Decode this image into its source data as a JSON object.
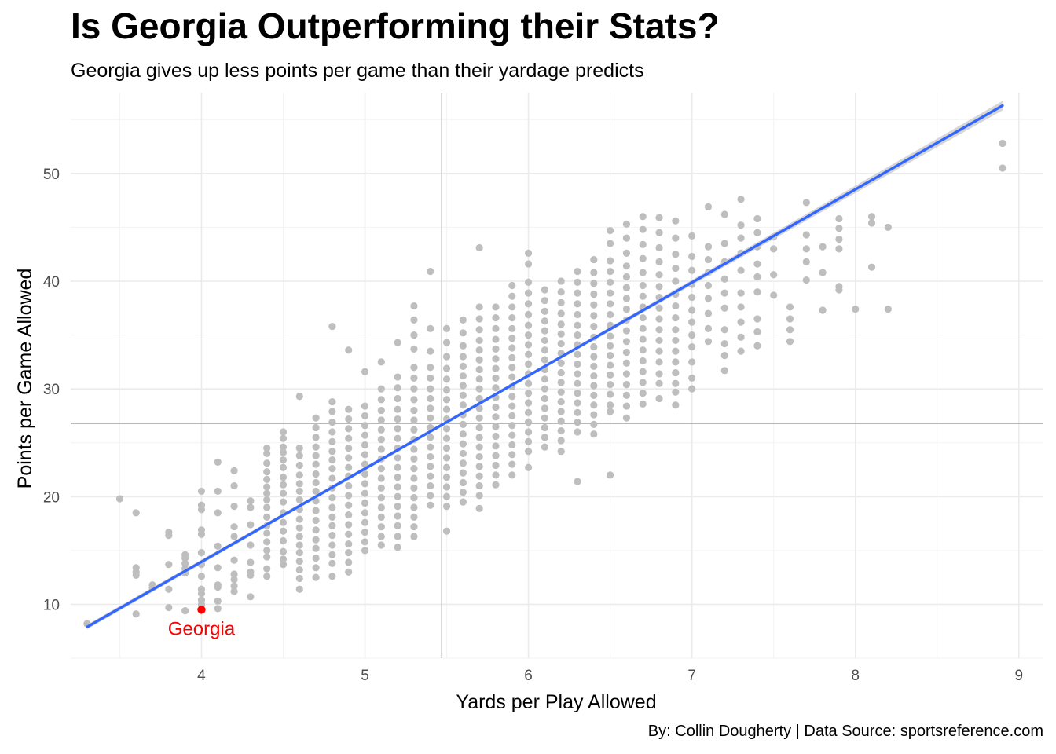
{
  "chart_data": {
    "type": "scatter",
    "title": "Is Georgia Outperforming their Stats?",
    "subtitle": "Georgia gives up less points per game than their yardage predicts",
    "caption": "By: Collin Dougherty | Data Source: sportsreference.com",
    "xlabel": "Yards per Play Allowed",
    "ylabel": "Points per Game Allowed",
    "xlim": [
      3.2,
      9.15
    ],
    "ylim": [
      5.0,
      57.5
    ],
    "x_ticks": [
      4,
      5,
      6,
      7,
      8,
      9
    ],
    "y_ticks": [
      10,
      20,
      30,
      40,
      50
    ],
    "grid": true,
    "colors": {
      "points": "#bebebe",
      "trend": "#3366ff",
      "highlight": "#ff0000",
      "reference": "#a0a0a0",
      "grid": "#ebebeb",
      "ribbon": "#cccccc"
    },
    "reference_lines": {
      "x": 5.47,
      "y": 26.8
    },
    "trend_line": {
      "x": [
        3.3,
        8.9
      ],
      "y": [
        7.9,
        56.3
      ]
    },
    "highlight": {
      "label": "Georgia",
      "x": 4.0,
      "y": 9.5
    },
    "columns": [
      {
        "x": 3.3,
        "y": [
          8.2
        ]
      },
      {
        "x": 3.5,
        "y": [
          19.8
        ]
      },
      {
        "x": 3.6,
        "y": [
          18.5,
          13.4,
          13.0,
          12.7,
          9.1
        ]
      },
      {
        "x": 3.7,
        "y": [
          11.8,
          11.5
        ]
      },
      {
        "x": 3.8,
        "y": [
          16.7,
          16.4,
          13.7,
          11.4,
          9.7
        ]
      },
      {
        "x": 3.9,
        "y": [
          14.6,
          14.3,
          13.8,
          13.3,
          12.9,
          9.4
        ]
      },
      {
        "x": 4.0,
        "y": [
          20.5,
          19.2,
          18.8,
          16.9,
          16.5,
          14.8,
          13.7,
          12.6,
          11.4,
          11.0,
          10.4,
          10.0
        ]
      },
      {
        "x": 4.1,
        "y": [
          23.2,
          20.5,
          18.5,
          15.4,
          13.4,
          11.8,
          11.6,
          10.3,
          9.6
        ]
      },
      {
        "x": 4.2,
        "y": [
          22.4,
          21.0,
          19.1,
          17.2,
          16.3,
          14.1,
          12.8,
          12.3,
          11.7,
          11.2
        ]
      },
      {
        "x": 4.3,
        "y": [
          19.6,
          19.0,
          17.4,
          15.5,
          13.9,
          13.0,
          12.7,
          10.7
        ]
      },
      {
        "x": 4.4,
        "y": [
          24.5,
          24.0,
          23.1,
          22.3,
          21.6,
          20.9,
          20.3,
          19.7,
          19.0,
          18.1,
          17.3,
          16.6,
          15.8,
          15.0,
          14.4,
          13.3,
          12.6
        ]
      },
      {
        "x": 4.5,
        "y": [
          26.0,
          25.4,
          24.6,
          24.1,
          23.4,
          22.7,
          21.8,
          21.1,
          20.3,
          19.5,
          18.5,
          17.6,
          16.8,
          15.9,
          14.9,
          14.2,
          13.7
        ]
      },
      {
        "x": 4.6,
        "y": [
          29.3,
          24.5,
          23.8,
          22.9,
          22.0,
          21.2,
          20.5,
          19.7,
          18.8,
          17.9,
          17.1,
          16.3,
          15.5,
          14.8,
          14.0,
          13.2,
          12.4,
          11.4
        ]
      },
      {
        "x": 4.7,
        "y": [
          27.3,
          26.4,
          25.5,
          24.6,
          23.8,
          23.0,
          22.1,
          21.3,
          20.5,
          19.6,
          18.7,
          17.8,
          16.9,
          16.0,
          15.2,
          14.3,
          13.4,
          12.5
        ]
      },
      {
        "x": 4.8,
        "y": [
          35.8,
          28.8,
          27.9,
          26.9,
          26.0,
          25.1,
          24.2,
          23.4,
          22.6,
          21.7,
          20.8,
          19.9,
          19.0,
          18.1,
          17.3,
          16.4,
          15.5,
          14.6,
          13.8,
          12.6
        ]
      },
      {
        "x": 4.9,
        "y": [
          33.6,
          28.1,
          27.2,
          26.3,
          25.4,
          24.5,
          23.6,
          22.7,
          21.9,
          21.0,
          20.1,
          19.2,
          18.3,
          17.4,
          16.5,
          15.6,
          14.8,
          13.9,
          13.0
        ]
      },
      {
        "x": 5.0,
        "y": [
          31.6,
          28.4,
          27.5,
          26.6,
          25.7,
          24.8,
          23.9,
          23.0,
          22.1,
          21.2,
          20.3,
          19.4,
          18.5,
          17.6,
          16.7,
          15.8,
          15.0
        ]
      },
      {
        "x": 5.1,
        "y": [
          32.5,
          30.0,
          29.0,
          28.0,
          27.1,
          26.2,
          25.3,
          24.4,
          23.5,
          22.6,
          21.7,
          20.8,
          19.9,
          19.0,
          18.1,
          17.2,
          16.3,
          15.5
        ]
      },
      {
        "x": 5.2,
        "y": [
          34.3,
          31.1,
          30.1,
          29.1,
          28.1,
          27.2,
          26.3,
          25.4,
          24.5,
          23.6,
          22.7,
          21.8,
          20.9,
          20.0,
          19.1,
          18.2,
          17.3,
          16.3,
          15.3
        ]
      },
      {
        "x": 5.3,
        "y": [
          37.7,
          36.4,
          35.0,
          33.7,
          32.0,
          31.0,
          30.0,
          29.0,
          28.0,
          27.1,
          26.2,
          25.3,
          24.4,
          23.5,
          22.6,
          21.7,
          20.8,
          19.9,
          19.0,
          18.1,
          17.2,
          16.3
        ]
      },
      {
        "x": 5.4,
        "y": [
          40.9,
          35.6,
          33.5,
          32.0,
          31.0,
          30.0,
          29.1,
          28.2,
          27.3,
          26.4,
          25.5,
          24.6,
          23.7,
          22.8,
          21.9,
          21.0,
          20.1,
          19.2
        ]
      },
      {
        "x": 5.5,
        "y": [
          35.6,
          34.3,
          33.0,
          31.9,
          30.9,
          29.9,
          29.0,
          28.1,
          27.2,
          26.3,
          25.4,
          24.5,
          23.6,
          22.7,
          21.8,
          20.9,
          20.0,
          19.1,
          16.8
        ]
      },
      {
        "x": 5.6,
        "y": [
          36.4,
          35.2,
          34.0,
          33.0,
          32.1,
          31.2,
          30.3,
          29.4,
          28.5,
          27.6,
          26.7,
          25.8,
          24.9,
          24.0,
          23.1,
          22.2,
          21.3,
          20.4,
          19.5
        ]
      },
      {
        "x": 5.7,
        "y": [
          43.1,
          37.6,
          36.5,
          35.5,
          34.5,
          33.6,
          32.7,
          31.8,
          30.9,
          30.0,
          29.1,
          28.2,
          27.3,
          26.4,
          25.5,
          24.6,
          23.7,
          22.8,
          21.9,
          21.0,
          20.1,
          18.9
        ]
      },
      {
        "x": 5.8,
        "y": [
          37.6,
          36.6,
          35.6,
          34.6,
          33.7,
          32.8,
          31.9,
          31.0,
          30.1,
          29.2,
          28.3,
          27.4,
          26.5,
          25.6,
          24.7,
          23.8,
          22.9,
          22.0,
          21.1
        ]
      },
      {
        "x": 5.9,
        "y": [
          39.6,
          38.6,
          37.6,
          36.6,
          35.6,
          34.7,
          33.8,
          32.9,
          32.0,
          31.1,
          30.2,
          29.3,
          28.4,
          27.5,
          26.6,
          25.7,
          24.8,
          23.9,
          23.0,
          22.0
        ]
      },
      {
        "x": 6.0,
        "y": [
          42.6,
          41.6,
          39.9,
          38.9,
          37.9,
          36.9,
          35.9,
          35.0,
          34.1,
          33.2,
          32.3,
          31.4,
          30.5,
          29.6,
          28.7,
          27.8,
          26.9,
          26.0,
          25.1,
          24.2,
          22.7
        ]
      },
      {
        "x": 6.1,
        "y": [
          39.2,
          38.2,
          37.2,
          36.3,
          35.4,
          34.5,
          33.6,
          32.7,
          31.8,
          30.9,
          30.0,
          29.1,
          28.2,
          27.3,
          26.4,
          25.5,
          24.6
        ]
      },
      {
        "x": 6.2,
        "y": [
          40.0,
          39.0,
          38.0,
          37.0,
          36.0,
          35.1,
          34.2,
          33.3,
          32.4,
          31.5,
          30.6,
          29.7,
          28.8,
          27.9,
          27.0,
          26.1,
          25.2,
          24.2
        ]
      },
      {
        "x": 6.3,
        "y": [
          40.9,
          39.9,
          38.9,
          37.9,
          36.9,
          35.9,
          35.0,
          34.1,
          33.2,
          32.3,
          31.4,
          30.5,
          29.6,
          28.7,
          27.8,
          26.9,
          26.0,
          21.4
        ]
      },
      {
        "x": 6.4,
        "y": [
          42.0,
          40.8,
          39.8,
          38.8,
          37.8,
          36.8,
          35.8,
          34.8,
          33.9,
          33.0,
          32.1,
          31.2,
          30.3,
          29.4,
          28.5,
          27.6,
          26.7,
          25.8
        ]
      },
      {
        "x": 6.5,
        "y": [
          44.7,
          43.5,
          41.9,
          40.9,
          39.9,
          38.9,
          37.9,
          36.9,
          35.9,
          34.9,
          34.0,
          33.1,
          32.2,
          31.3,
          30.4,
          29.5,
          28.5,
          27.9,
          22.0
        ]
      },
      {
        "x": 6.6,
        "y": [
          45.3,
          44.0,
          42.6,
          41.4,
          40.4,
          39.4,
          38.4,
          37.4,
          36.4,
          35.4,
          34.4,
          33.4,
          32.4,
          31.4,
          30.4,
          29.4,
          28.4,
          27.3
        ]
      },
      {
        "x": 6.7,
        "y": [
          46.0,
          44.8,
          43.4,
          42.1,
          40.8,
          39.6,
          38.6,
          37.6,
          36.6,
          35.6,
          34.6,
          33.6,
          32.6,
          31.6,
          30.6,
          29.6,
          28.6
        ]
      },
      {
        "x": 6.8,
        "y": [
          45.9,
          44.5,
          43.1,
          41.8,
          40.6,
          39.5,
          38.5,
          37.5,
          36.5,
          35.5,
          34.5,
          33.5,
          32.5,
          31.4,
          30.5,
          29.1
        ]
      },
      {
        "x": 6.9,
        "y": [
          45.6,
          44.0,
          42.5,
          41.2,
          40.0,
          38.8,
          37.7,
          36.6,
          35.5,
          34.5,
          33.5,
          32.5,
          31.5,
          30.5,
          29.7,
          28.5
        ]
      },
      {
        "x": 7.0,
        "y": [
          44.2,
          42.3,
          41.0,
          39.7,
          38.5,
          37.3,
          36.2,
          35.0,
          33.9,
          32.5,
          31.0,
          30.0
        ]
      },
      {
        "x": 7.1,
        "y": [
          46.9,
          43.2,
          42.0,
          40.8,
          39.6,
          38.4,
          37.0,
          35.6,
          34.4
        ]
      },
      {
        "x": 7.2,
        "y": [
          46.2,
          43.5,
          41.8,
          40.2,
          38.9,
          37.5,
          35.5,
          34.2,
          33.1,
          31.7
        ]
      },
      {
        "x": 7.3,
        "y": [
          47.6,
          45.2,
          44.0,
          42.6,
          41.0,
          38.9,
          37.6,
          36.2,
          34.8,
          33.5
        ]
      },
      {
        "x": 7.4,
        "y": [
          45.8,
          44.5,
          43.2,
          41.6,
          40.4,
          39.0,
          36.5,
          35.3,
          34.0
        ]
      },
      {
        "x": 7.5,
        "y": [
          44.1,
          43.0,
          40.6,
          38.7
        ]
      },
      {
        "x": 7.6,
        "y": [
          37.6,
          36.5,
          35.5,
          34.4
        ]
      },
      {
        "x": 7.7,
        "y": [
          47.3,
          44.3,
          43.0,
          41.8,
          40.1
        ]
      },
      {
        "x": 7.8,
        "y": [
          43.2,
          40.8,
          37.3
        ]
      },
      {
        "x": 7.9,
        "y": [
          45.8,
          44.9,
          43.9,
          43.0,
          39.5,
          39.2
        ]
      },
      {
        "x": 8.0,
        "y": [
          37.4
        ]
      },
      {
        "x": 8.1,
        "y": [
          46.0,
          45.4,
          41.3
        ]
      },
      {
        "x": 8.2,
        "y": [
          45.0,
          37.4
        ]
      },
      {
        "x": 8.9,
        "y": [
          52.8,
          50.5
        ]
      }
    ]
  }
}
